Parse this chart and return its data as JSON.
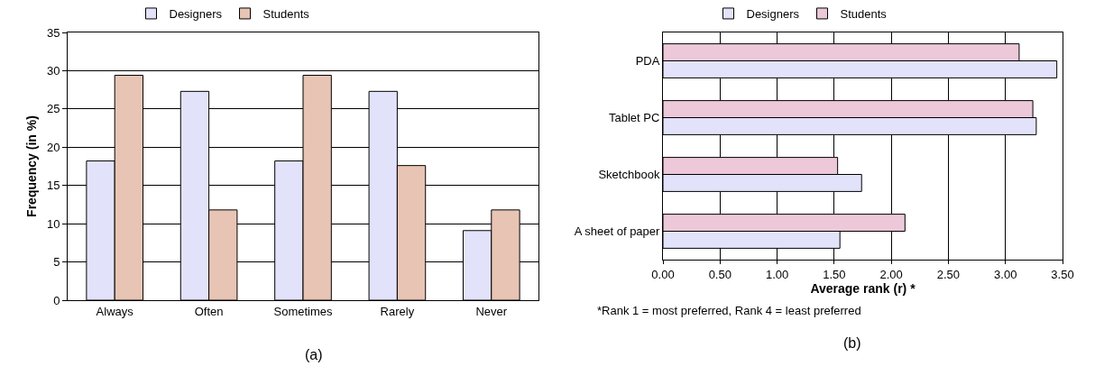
{
  "chart_data": [
    {
      "type": "bar",
      "ylabel": "Frequency (in %)",
      "categories": [
        "Always",
        "Often",
        "Sometimes",
        "Rarely",
        "Never"
      ],
      "series": [
        {
          "name": "Designers",
          "color": "#e2e2fa",
          "values": [
            18.2,
            27.3,
            18.2,
            27.3,
            9.1
          ]
        },
        {
          "name": "Students",
          "color": "#e8c4b4",
          "values": [
            29.4,
            11.8,
            29.4,
            17.6,
            11.8
          ]
        }
      ],
      "ylim": [
        0,
        35
      ],
      "yticks": [
        0,
        5,
        10,
        15,
        20,
        25,
        30,
        35
      ],
      "grid": "y",
      "legend": "top",
      "annotations": [
        "(a)"
      ]
    },
    {
      "type": "bar",
      "orientation": "horizontal",
      "xlabel": "Average rank (r) *",
      "categories": [
        "PDA",
        "Tablet PC",
        "Sketchbook",
        "A sheet of paper"
      ],
      "series": [
        {
          "name": "Designers",
          "color": "#e2e2fa",
          "values": [
            3.45,
            3.27,
            1.74,
            1.55
          ]
        },
        {
          "name": "Students",
          "color": "#ecc8d8",
          "values": [
            3.12,
            3.24,
            1.53,
            2.12
          ]
        }
      ],
      "xlim": [
        0,
        3.5
      ],
      "xticks": [
        {
          "value": 0,
          "label": "0.00"
        },
        {
          "value": 0.5,
          "label": "0.50"
        },
        {
          "value": 1,
          "label": "1.00"
        },
        {
          "value": 1.5,
          "label": "1.50"
        },
        {
          "value": 2,
          "label": "2.00"
        },
        {
          "value": 2.5,
          "label": "2.50"
        },
        {
          "value": 3,
          "label": "3.00"
        },
        {
          "value": 3.5,
          "label": "3.50"
        }
      ],
      "grid": "x",
      "legend": "top",
      "annotations": [
        "*Rank 1 = most preferred, Rank 4 = least preferred",
        "(b)"
      ]
    }
  ]
}
